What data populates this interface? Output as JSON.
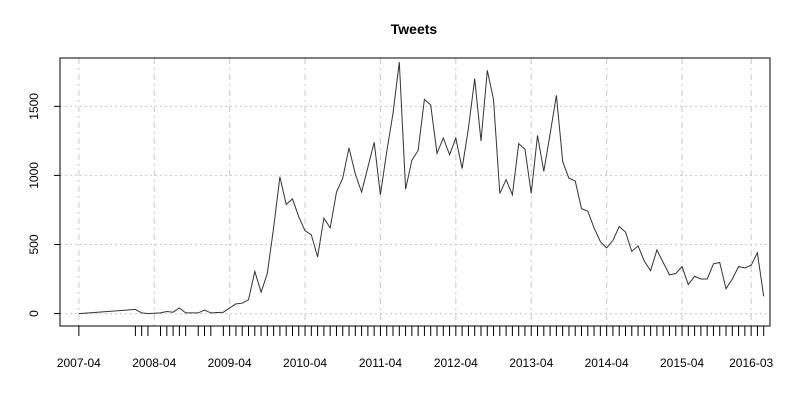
{
  "chart_data": {
    "type": "line",
    "title": "Tweets",
    "xlabel": "",
    "ylabel": "",
    "ylim": [
      0,
      1850
    ],
    "xlim": [
      "2007-01",
      "2016-06"
    ],
    "y_ticks": [
      0,
      500,
      1000,
      1500
    ],
    "x_ticks": [
      "2007-04",
      "2008-04",
      "2009-04",
      "2010-04",
      "2011-04",
      "2012-04",
      "2013-04",
      "2014-04",
      "2015-04",
      "2016-03"
    ],
    "grid": true,
    "series": [
      {
        "color": "#333333",
        "points": [
          [
            "2007-04",
            0
          ],
          [
            "2008-01",
            30
          ],
          [
            "2008-02",
            5
          ],
          [
            "2008-03",
            0
          ],
          [
            "2008-05",
            5
          ],
          [
            "2008-06",
            15
          ],
          [
            "2008-07",
            10
          ],
          [
            "2008-08",
            40
          ],
          [
            "2008-09",
            5
          ],
          [
            "2008-11",
            5
          ],
          [
            "2008-12",
            25
          ],
          [
            "2009-01",
            5
          ],
          [
            "2009-03",
            10
          ],
          [
            "2009-04",
            40
          ],
          [
            "2009-05",
            70
          ],
          [
            "2009-06",
            75
          ],
          [
            "2009-07",
            100
          ],
          [
            "2009-08",
            305
          ],
          [
            "2009-09",
            155
          ],
          [
            "2009-10",
            290
          ],
          [
            "2009-11",
            620
          ],
          [
            "2009-12",
            990
          ],
          [
            "2010-01",
            790
          ],
          [
            "2010-02",
            830
          ],
          [
            "2010-03",
            700
          ],
          [
            "2010-04",
            600
          ],
          [
            "2010-05",
            570
          ],
          [
            "2010-06",
            410
          ],
          [
            "2010-07",
            690
          ],
          [
            "2010-08",
            620
          ],
          [
            "2010-09",
            880
          ],
          [
            "2010-10",
            980
          ],
          [
            "2010-11",
            1200
          ],
          [
            "2010-12",
            1010
          ],
          [
            "2011-01",
            880
          ],
          [
            "2011-02",
            1060
          ],
          [
            "2011-03",
            1240
          ],
          [
            "2011-04",
            860
          ],
          [
            "2011-05",
            1170
          ],
          [
            "2011-06",
            1450
          ],
          [
            "2011-07",
            1820
          ],
          [
            "2011-08",
            900
          ],
          [
            "2011-09",
            1110
          ],
          [
            "2011-10",
            1180
          ],
          [
            "2011-11",
            1550
          ],
          [
            "2011-12",
            1510
          ],
          [
            "2012-01",
            1160
          ],
          [
            "2012-02",
            1270
          ],
          [
            "2012-03",
            1150
          ],
          [
            "2012-04",
            1270
          ],
          [
            "2012-05",
            1050
          ],
          [
            "2012-06",
            1340
          ],
          [
            "2012-07",
            1700
          ],
          [
            "2012-08",
            1250
          ],
          [
            "2012-09",
            1760
          ],
          [
            "2012-10",
            1550
          ],
          [
            "2012-11",
            870
          ],
          [
            "2012-12",
            970
          ],
          [
            "2013-01",
            860
          ],
          [
            "2013-02",
            1230
          ],
          [
            "2013-03",
            1190
          ],
          [
            "2013-04",
            870
          ],
          [
            "2013-05",
            1290
          ],
          [
            "2013-06",
            1030
          ],
          [
            "2013-07",
            1300
          ],
          [
            "2013-08",
            1580
          ],
          [
            "2013-09",
            1100
          ],
          [
            "2013-10",
            980
          ],
          [
            "2013-11",
            960
          ],
          [
            "2013-12",
            760
          ],
          [
            "2014-01",
            740
          ],
          [
            "2014-02",
            620
          ],
          [
            "2014-03",
            520
          ],
          [
            "2014-04",
            475
          ],
          [
            "2014-05",
            530
          ],
          [
            "2014-06",
            630
          ],
          [
            "2014-07",
            590
          ],
          [
            "2014-08",
            450
          ],
          [
            "2014-09",
            490
          ],
          [
            "2014-10",
            380
          ],
          [
            "2014-11",
            310
          ],
          [
            "2014-12",
            460
          ],
          [
            "2015-01",
            370
          ],
          [
            "2015-02",
            280
          ],
          [
            "2015-03",
            290
          ],
          [
            "2015-04",
            340
          ],
          [
            "2015-05",
            210
          ],
          [
            "2015-06",
            270
          ],
          [
            "2015-07",
            250
          ],
          [
            "2015-08",
            250
          ],
          [
            "2015-09",
            360
          ],
          [
            "2015-10",
            370
          ],
          [
            "2015-11",
            180
          ],
          [
            "2015-12",
            250
          ],
          [
            "2016-01",
            340
          ],
          [
            "2016-02",
            330
          ],
          [
            "2016-03",
            350
          ],
          [
            "2016-04",
            440
          ],
          [
            "2016-05",
            125
          ]
        ]
      }
    ]
  }
}
